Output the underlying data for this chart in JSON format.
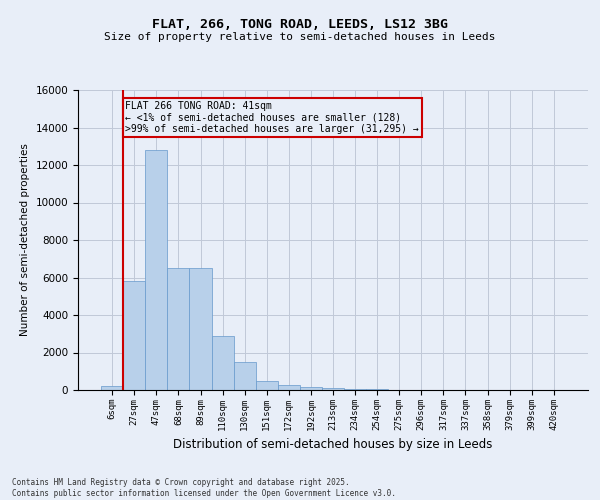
{
  "title_line1": "FLAT, 266, TONG ROAD, LEEDS, LS12 3BG",
  "title_line2": "Size of property relative to semi-detached houses in Leeds",
  "xlabel": "Distribution of semi-detached houses by size in Leeds",
  "ylabel": "Number of semi-detached properties",
  "annotation_title": "FLAT 266 TONG ROAD: 41sqm",
  "annotation_line2": "← <1% of semi-detached houses are smaller (128)",
  "annotation_line3": ">99% of semi-detached houses are larger (31,295) →",
  "footer_line1": "Contains HM Land Registry data © Crown copyright and database right 2025.",
  "footer_line2": "Contains public sector information licensed under the Open Government Licence v3.0.",
  "bar_color": "#b8d0ea",
  "bar_edge_color": "#6699cc",
  "vline_color": "#cc0000",
  "annotation_box_color": "#cc0000",
  "background_color": "#e8eef8",
  "categories": [
    "6sqm",
    "27sqm",
    "47sqm",
    "68sqm",
    "89sqm",
    "110sqm",
    "130sqm",
    "151sqm",
    "172sqm",
    "192sqm",
    "213sqm",
    "234sqm",
    "254sqm",
    "275sqm",
    "296sqm",
    "317sqm",
    "337sqm",
    "358sqm",
    "379sqm",
    "399sqm",
    "420sqm"
  ],
  "bar_heights": [
    200,
    5800,
    12800,
    6500,
    6500,
    2900,
    1500,
    500,
    280,
    180,
    120,
    80,
    50,
    25,
    12,
    5,
    3,
    1,
    0,
    0,
    0
  ],
  "ylim": [
    0,
    16000
  ],
  "yticks": [
    0,
    2000,
    4000,
    6000,
    8000,
    10000,
    12000,
    14000,
    16000
  ],
  "vline_x_index": 0.5
}
